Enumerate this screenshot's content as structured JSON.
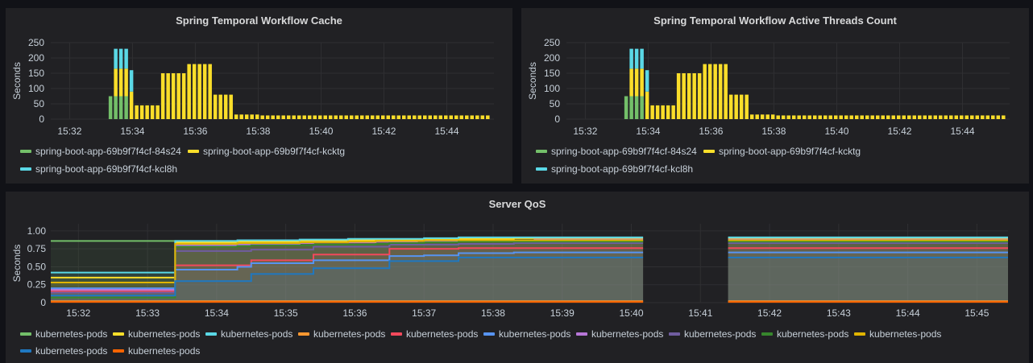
{
  "panels": {
    "cache": {
      "title": "Spring Temporal Workflow Cache",
      "legend": [
        {
          "label": "spring-boot-app-69b9f7f4cf-84s24",
          "color": "#73bf69"
        },
        {
          "label": "spring-boot-app-69b9f7f4cf-kcktg",
          "color": "#fade2a"
        },
        {
          "label": "spring-boot-app-69b9f7f4cf-kcl8h",
          "color": "#5ad8e6"
        }
      ]
    },
    "threads": {
      "title": "Spring Temporal Workflow Active Threads Count",
      "legend": [
        {
          "label": "spring-boot-app-69b9f7f4cf-84s24",
          "color": "#73bf69"
        },
        {
          "label": "spring-boot-app-69b9f7f4cf-kcktg",
          "color": "#fade2a"
        },
        {
          "label": "spring-boot-app-69b9f7f4cf-kcl8h",
          "color": "#5ad8e6"
        }
      ]
    },
    "qos": {
      "title": "Server QoS",
      "legend": [
        {
          "label": "kubernetes-pods",
          "color": "#73bf69"
        },
        {
          "label": "kubernetes-pods",
          "color": "#fade2a"
        },
        {
          "label": "kubernetes-pods",
          "color": "#5ad8e6"
        },
        {
          "label": "kubernetes-pods",
          "color": "#ff9830"
        },
        {
          "label": "kubernetes-pods",
          "color": "#f2495c"
        },
        {
          "label": "kubernetes-pods",
          "color": "#5794f2"
        },
        {
          "label": "kubernetes-pods",
          "color": "#b877d9"
        },
        {
          "label": "kubernetes-pods",
          "color": "#705da0"
        },
        {
          "label": "kubernetes-pods",
          "color": "#37872d"
        },
        {
          "label": "kubernetes-pods",
          "color": "#e0b400"
        },
        {
          "label": "kubernetes-pods",
          "color": "#1f78c1"
        },
        {
          "label": "kubernetes-pods",
          "color": "#fa6400"
        }
      ]
    }
  },
  "chart_data": [
    {
      "type": "bar",
      "title": "Spring Temporal Workflow Cache",
      "ylabel": "Seconds",
      "ylim": [
        0,
        250
      ],
      "yticks": [
        "0",
        "50",
        "100",
        "150",
        "200",
        "250"
      ],
      "xticks": [
        "15:32",
        "15:34",
        "15:36",
        "15:38",
        "15:40",
        "15:42",
        "15:44"
      ],
      "x_start_minutes": 31.4,
      "x_end_minutes": 45.5,
      "bar_start_minutes": 33.3,
      "bar_step_minutes": 0.1667,
      "stacked": true,
      "series": [
        {
          "name": "spring-boot-app-69b9f7f4cf-84s24",
          "color": "#73bf69",
          "values": [
            75,
            75,
            75,
            75,
            0,
            0,
            0,
            0,
            0,
            0,
            0,
            0,
            0,
            0,
            0,
            0,
            0,
            0,
            0,
            0,
            0,
            0,
            0,
            0,
            0,
            0,
            0,
            0,
            0,
            0,
            0,
            0,
            0,
            0,
            0,
            0,
            0,
            0,
            0,
            0,
            0,
            0,
            0,
            0,
            0,
            0,
            0,
            0,
            0,
            0,
            0,
            0,
            0,
            0,
            0,
            0,
            0,
            0,
            0,
            0,
            0,
            0,
            0,
            0,
            0,
            0,
            0,
            0,
            0,
            0,
            0,
            0,
            0,
            0,
            0
          ]
        },
        {
          "name": "spring-boot-app-69b9f7f4cf-kcktg",
          "color": "#fade2a",
          "values": [
            0,
            90,
            90,
            90,
            90,
            45,
            45,
            45,
            45,
            45,
            150,
            150,
            150,
            150,
            150,
            180,
            180,
            180,
            180,
            180,
            80,
            80,
            80,
            80,
            15,
            15,
            15,
            15,
            15,
            12,
            12,
            12,
            12,
            12,
            12,
            12,
            12,
            12,
            12,
            12,
            12,
            12,
            12,
            12,
            12,
            12,
            12,
            12,
            12,
            12,
            12,
            12,
            12,
            12,
            12,
            12,
            12,
            12,
            12,
            12,
            12,
            12,
            12,
            12,
            12,
            12,
            12,
            12,
            12,
            12,
            12,
            12,
            12,
            12,
            12
          ]
        },
        {
          "name": "spring-boot-app-69b9f7f4cf-kcl8h",
          "color": "#5ad8e6",
          "values": [
            0,
            65,
            65,
            65,
            70,
            0,
            0,
            0,
            0,
            0,
            0,
            0,
            0,
            0,
            0,
            0,
            0,
            0,
            0,
            0,
            0,
            0,
            0,
            0,
            0,
            0,
            0,
            0,
            0,
            0,
            0,
            0,
            0,
            0,
            0,
            0,
            0,
            0,
            0,
            0,
            0,
            0,
            0,
            0,
            0,
            0,
            0,
            0,
            0,
            0,
            0,
            0,
            0,
            0,
            0,
            0,
            0,
            0,
            0,
            0,
            0,
            0,
            0,
            0,
            0,
            0,
            0,
            0,
            0,
            0,
            0,
            0,
            0,
            0,
            0
          ]
        }
      ]
    },
    {
      "type": "bar",
      "title": "Spring Temporal Workflow Active Threads Count",
      "ylabel": "Seconds",
      "ylim": [
        0,
        250
      ],
      "yticks": [
        "0",
        "50",
        "100",
        "150",
        "200",
        "250"
      ],
      "xticks": [
        "15:32",
        "15:34",
        "15:36",
        "15:38",
        "15:40",
        "15:42",
        "15:44"
      ],
      "x_start_minutes": 31.4,
      "x_end_minutes": 45.5,
      "bar_start_minutes": 33.3,
      "bar_step_minutes": 0.1667,
      "stacked": true,
      "series": [
        {
          "name": "spring-boot-app-69b9f7f4cf-84s24",
          "color": "#73bf69",
          "values": [
            75,
            75,
            75,
            75,
            0,
            0,
            0,
            0,
            0,
            0,
            0,
            0,
            0,
            0,
            0,
            0,
            0,
            0,
            0,
            0,
            0,
            0,
            0,
            0,
            0,
            0,
            0,
            0,
            0,
            0,
            0,
            0,
            0,
            0,
            0,
            0,
            0,
            0,
            0,
            0,
            0,
            0,
            0,
            0,
            0,
            0,
            0,
            0,
            0,
            0,
            0,
            0,
            0,
            0,
            0,
            0,
            0,
            0,
            0,
            0,
            0,
            0,
            0,
            0,
            0,
            0,
            0,
            0,
            0,
            0,
            0,
            0,
            0,
            0,
            0
          ]
        },
        {
          "name": "spring-boot-app-69b9f7f4cf-kcktg",
          "color": "#fade2a",
          "values": [
            0,
            90,
            90,
            90,
            90,
            45,
            45,
            45,
            45,
            45,
            150,
            150,
            150,
            150,
            150,
            180,
            180,
            180,
            180,
            180,
            80,
            80,
            80,
            80,
            15,
            15,
            15,
            15,
            15,
            12,
            12,
            12,
            12,
            12,
            12,
            12,
            12,
            12,
            12,
            12,
            12,
            12,
            12,
            12,
            12,
            12,
            12,
            12,
            12,
            12,
            12,
            12,
            12,
            12,
            12,
            12,
            12,
            12,
            12,
            12,
            12,
            12,
            12,
            12,
            12,
            12,
            12,
            12,
            12,
            12,
            12,
            12,
            12,
            12,
            12
          ]
        },
        {
          "name": "spring-boot-app-69b9f7f4cf-kcl8h",
          "color": "#5ad8e6",
          "values": [
            0,
            65,
            65,
            65,
            70,
            0,
            0,
            0,
            0,
            0,
            0,
            0,
            0,
            0,
            0,
            0,
            0,
            0,
            0,
            0,
            0,
            0,
            0,
            0,
            0,
            0,
            0,
            0,
            0,
            0,
            0,
            0,
            0,
            0,
            0,
            0,
            0,
            0,
            0,
            0,
            0,
            0,
            0,
            0,
            0,
            0,
            0,
            0,
            0,
            0,
            0,
            0,
            0,
            0,
            0,
            0,
            0,
            0,
            0,
            0,
            0,
            0,
            0,
            0,
            0,
            0,
            0,
            0,
            0,
            0,
            0,
            0,
            0,
            0,
            0
          ]
        }
      ]
    },
    {
      "type": "area",
      "title": "Server QoS",
      "ylabel": "Seconds",
      "ylim": [
        0,
        1.1
      ],
      "yticks": [
        "0",
        "0.25",
        "0.50",
        "0.75",
        "1.00"
      ],
      "xticks": [
        "15:32",
        "15:33",
        "15:34",
        "15:35",
        "15:36",
        "15:37",
        "15:38",
        "15:39",
        "15:40",
        "15:41",
        "15:42",
        "15:43",
        "15:44",
        "15:45"
      ],
      "x_start_minutes": 31.6,
      "x_end_minutes": 45.45,
      "gap_minutes": [
        40.17,
        41.4
      ],
      "x": [
        31.6,
        33.2,
        33.4,
        34.0,
        34.3,
        34.5,
        35.2,
        35.4,
        35.9,
        36.3,
        36.5,
        36.9,
        37.0,
        37.5,
        37.8,
        38.3,
        38.6,
        39.2,
        40.17,
        41.4,
        45.45
      ],
      "series": [
        {
          "name": "kubernetes-pods",
          "color": "#73bf69",
          "values": [
            0.86,
            0.86,
            0.86,
            0.86,
            0.86,
            0.86,
            0.86,
            0.86,
            0.86,
            0.86,
            0.86,
            0.86,
            0.86,
            0.86,
            0.86,
            0.86,
            0.86,
            0.86,
            0.86,
            0.86,
            0.86
          ]
        },
        {
          "name": "kubernetes-pods",
          "color": "#fade2a",
          "values": [
            0.35,
            0.35,
            0.84,
            0.84,
            0.85,
            0.85,
            0.86,
            0.86,
            0.87,
            0.88,
            0.88,
            0.88,
            0.89,
            0.89,
            0.89,
            0.9,
            0.9,
            0.9,
            0.9,
            0.9,
            0.9
          ]
        },
        {
          "name": "kubernetes-pods",
          "color": "#5ad8e6",
          "values": [
            0.42,
            0.42,
            0.86,
            0.86,
            0.87,
            0.87,
            0.88,
            0.88,
            0.89,
            0.89,
            0.89,
            0.89,
            0.9,
            0.91,
            0.91,
            0.91,
            0.91,
            0.91,
            0.91,
            0.91,
            0.91
          ]
        },
        {
          "name": "kubernetes-pods",
          "color": "#ff9830",
          "values": [
            0.02,
            0.02,
            0.02,
            0.02,
            0.02,
            0.02,
            0.02,
            0.02,
            0.02,
            0.02,
            0.02,
            0.02,
            0.02,
            0.02,
            0.02,
            0.02,
            0.02,
            0.02,
            0.02,
            0.02,
            0.02
          ]
        },
        {
          "name": "kubernetes-pods",
          "color": "#f2495c",
          "values": [
            0.16,
            0.16,
            0.52,
            0.52,
            0.52,
            0.59,
            0.59,
            0.67,
            0.67,
            0.67,
            0.75,
            0.75,
            0.75,
            0.76,
            0.76,
            0.76,
            0.76,
            0.76,
            0.76,
            0.76,
            0.76
          ]
        },
        {
          "name": "kubernetes-pods",
          "color": "#5794f2",
          "values": [
            0.2,
            0.2,
            0.46,
            0.46,
            0.5,
            0.55,
            0.55,
            0.59,
            0.59,
            0.59,
            0.65,
            0.65,
            0.66,
            0.69,
            0.69,
            0.7,
            0.7,
            0.7,
            0.7,
            0.7,
            0.7
          ]
        },
        {
          "name": "kubernetes-pods",
          "color": "#b877d9",
          "values": [
            0.18,
            0.18,
            0.8,
            0.8,
            0.81,
            0.82,
            0.83,
            0.84,
            0.84,
            0.85,
            0.85,
            0.86,
            0.86,
            0.87,
            0.87,
            0.87,
            0.88,
            0.88,
            0.88,
            0.88,
            0.88
          ]
        },
        {
          "name": "kubernetes-pods",
          "color": "#705da0",
          "values": [
            0.14,
            0.14,
            0.72,
            0.72,
            0.72,
            0.74,
            0.74,
            0.78,
            0.78,
            0.78,
            0.81,
            0.81,
            0.81,
            0.82,
            0.82,
            0.83,
            0.83,
            0.83,
            0.83,
            0.83,
            0.83
          ]
        },
        {
          "name": "kubernetes-pods",
          "color": "#37872d",
          "values": [
            0.07,
            0.07,
            0.78,
            0.78,
            0.79,
            0.8,
            0.8,
            0.81,
            0.81,
            0.82,
            0.83,
            0.83,
            0.84,
            0.85,
            0.85,
            0.85,
            0.85,
            0.85,
            0.85,
            0.85,
            0.85
          ]
        },
        {
          "name": "kubernetes-pods",
          "color": "#e0b400",
          "values": [
            0.28,
            0.28,
            0.82,
            0.82,
            0.83,
            0.83,
            0.84,
            0.84,
            0.85,
            0.86,
            0.86,
            0.86,
            0.87,
            0.87,
            0.87,
            0.87,
            0.87,
            0.87,
            0.87,
            0.87,
            0.87
          ]
        },
        {
          "name": "kubernetes-pods",
          "color": "#1f78c1",
          "values": [
            0.1,
            0.1,
            0.3,
            0.3,
            0.3,
            0.4,
            0.4,
            0.48,
            0.48,
            0.48,
            0.58,
            0.58,
            0.58,
            0.63,
            0.63,
            0.63,
            0.63,
            0.63,
            0.63,
            0.63,
            0.63
          ]
        },
        {
          "name": "kubernetes-pods",
          "color": "#fa6400",
          "values": [
            0.01,
            0.01,
            0.01,
            0.01,
            0.01,
            0.01,
            0.01,
            0.01,
            0.01,
            0.01,
            0.01,
            0.01,
            0.01,
            0.01,
            0.01,
            0.01,
            0.01,
            0.01,
            0.01,
            0.01,
            0.01
          ]
        }
      ]
    }
  ]
}
